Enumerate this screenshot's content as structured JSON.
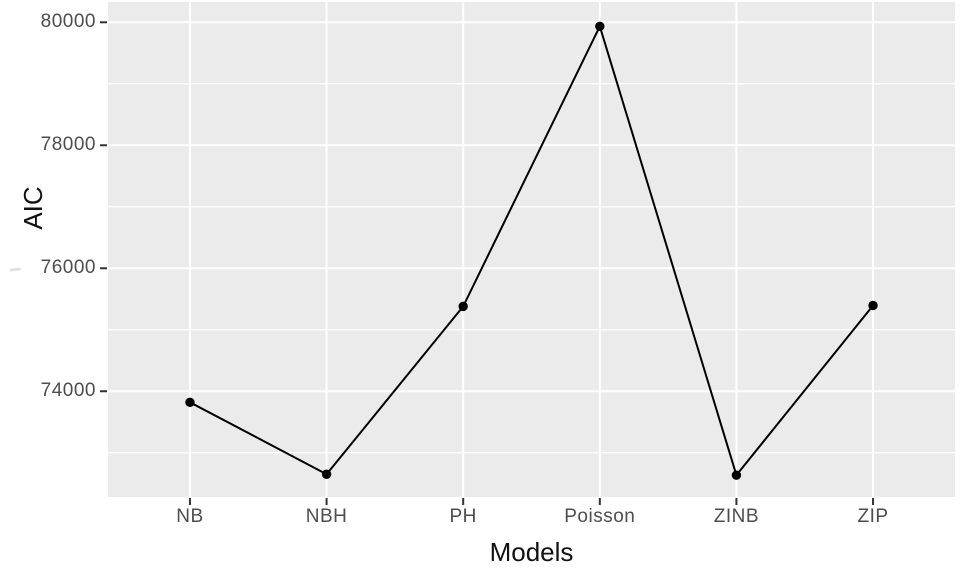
{
  "chart_data": {
    "type": "line",
    "title": "",
    "xlabel": "Models",
    "ylabel": "AIC",
    "categories": [
      "NB",
      "NBH",
      "PH",
      "Poisson",
      "ZINB",
      "ZIP"
    ],
    "series": [
      {
        "name": "AIC",
        "values": [
          73820,
          72650,
          75380,
          79935,
          72635,
          75395
        ]
      }
    ],
    "x": [
      1,
      2,
      3,
      4,
      5,
      6
    ],
    "ylim": [
      72280,
      80330
    ],
    "yticks_major": [
      74000,
      76000,
      78000,
      80000
    ],
    "yticks_minor": [
      73000,
      75000,
      77000,
      79000
    ],
    "grid": "on",
    "legend": "none",
    "marker": "filled-circle",
    "style": {
      "panel_bg": "#ebebeb",
      "grid_color": "#ffffff",
      "tick_mark_color": "#333333",
      "tick_label_color": "#4d4d4d",
      "axis_title_color": "#111111",
      "line_color": "#000000",
      "point_color": "#000000"
    }
  }
}
